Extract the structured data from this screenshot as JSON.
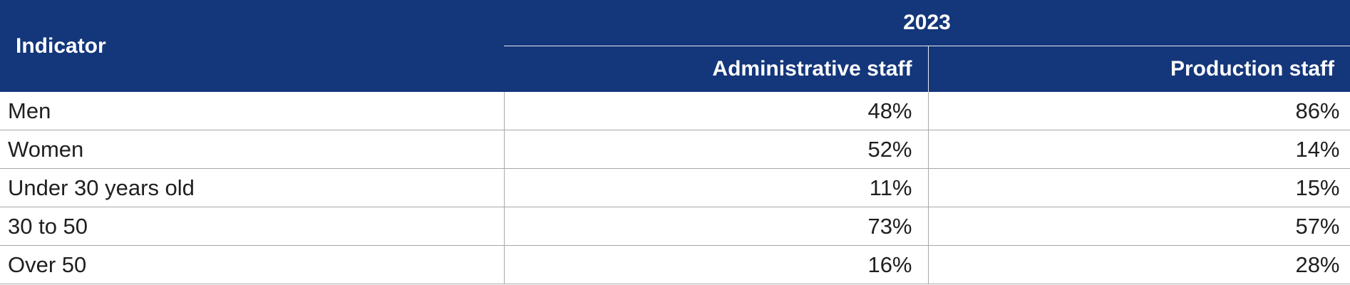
{
  "table": {
    "header": {
      "indicator": "Indicator",
      "year": "2023",
      "administrative": "Administrative staff",
      "production": "Production staff"
    },
    "rows": [
      {
        "label": "Men",
        "administrative": "48%",
        "production": "86%"
      },
      {
        "label": "Women",
        "administrative": "52%",
        "production": "14%"
      },
      {
        "label": "Under 30 years old",
        "administrative": "11%",
        "production": "15%"
      },
      {
        "label": "30 to 50",
        "administrative": "73%",
        "production": "57%"
      },
      {
        "label": "Over 50",
        "administrative": "16%",
        "production": "28%"
      }
    ]
  },
  "colors": {
    "header_background": "#14367a",
    "header_text": "#ffffff",
    "border": "#a8a8a8"
  }
}
